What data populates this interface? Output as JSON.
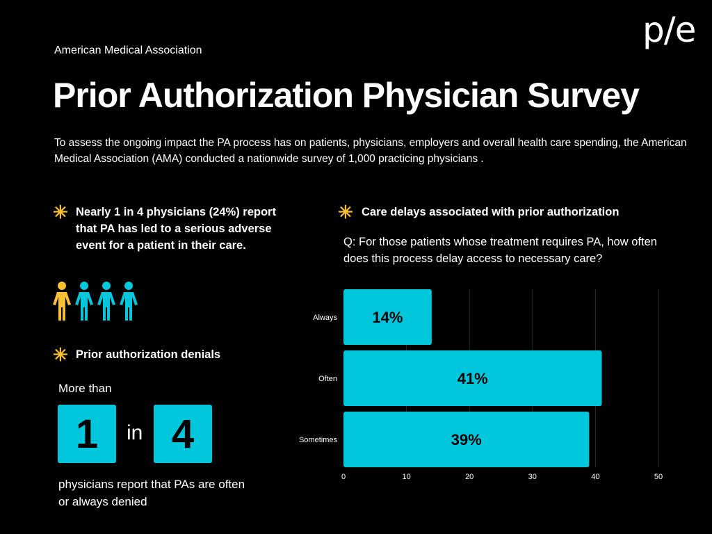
{
  "header": {
    "organization": "American Medical Association",
    "logo": "p/e",
    "title": "Prior Authorization Physician Survey",
    "intro": "To assess the ongoing impact the PA process has on patients, physicians, employers and overall health care spending, the American Medical Association (AMA) conducted a nationwide survey of 1,000 practicing physicians ."
  },
  "adverse": {
    "icon": "asterisk-icon",
    "text": "Nearly 1 in 4 physicians (24%)  report that PA has led to a serious adverse event for a patient in their care.",
    "people_highlighted": 1,
    "people_total": 4,
    "colors": {
      "highlight": "#f7bf32",
      "rest": "#00c7dc"
    }
  },
  "denials": {
    "icon": "asterisk-icon",
    "heading": "Prior authorization denials",
    "prefix": "More than",
    "num1": "1",
    "in": "in",
    "num2": "4",
    "text": "physicians report that PAs are often or always denied"
  },
  "delays": {
    "icon": "asterisk-icon",
    "heading": "Care delays associated with prior authorization",
    "question": "Q: For those patients whose treatment requires PA, how often does this process delay access to necessary care?"
  },
  "chart_data": {
    "type": "bar",
    "orientation": "horizontal",
    "categories": [
      "Always",
      "Often",
      "Sometimes"
    ],
    "values": [
      14,
      41,
      39
    ],
    "labels": [
      "14%",
      "41%",
      "39%"
    ],
    "xlim": [
      0,
      50
    ],
    "xticks": [
      "0",
      "10",
      "20",
      "30",
      "40",
      "50"
    ],
    "grid": true,
    "bar_color": "#00c7dc",
    "accent": "#f7bf32"
  }
}
